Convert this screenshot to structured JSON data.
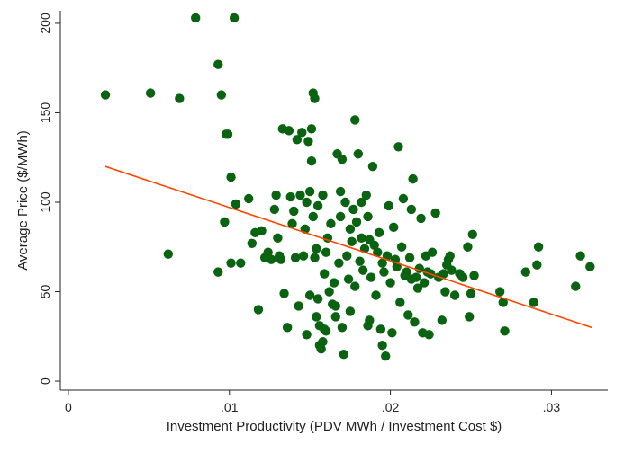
{
  "chart_data": {
    "type": "scatter",
    "title": "",
    "xlabel": "Investment Productivity (PDV MWh / Investment Cost $)",
    "ylabel": "Average Price ($/MWh)",
    "xlim": [
      -0.0005,
      0.0335
    ],
    "ylim": [
      -5,
      207
    ],
    "x_ticks": [
      0,
      0.01,
      0.02,
      0.03
    ],
    "x_tick_labels": [
      "0",
      ".01",
      ".02",
      ".03"
    ],
    "y_ticks": [
      0,
      50,
      100,
      150,
      200
    ],
    "y_tick_labels": [
      "0",
      "50",
      "100",
      "150",
      "200"
    ],
    "grid": false,
    "legend": "none",
    "colors": {
      "points": "#0a6310",
      "fit_line": "#ff4500",
      "axis": "#222222"
    },
    "fit_line": {
      "x": [
        0.0023,
        0.0325
      ],
      "y": [
        120,
        30
      ]
    },
    "series": [
      {
        "points": [
          [
            0.0023,
            160
          ],
          [
            0.0051,
            161
          ],
          [
            0.0069,
            158
          ],
          [
            0.0079,
            203
          ],
          [
            0.0093,
            177
          ],
          [
            0.0095,
            160
          ],
          [
            0.0098,
            138
          ],
          [
            0.0099,
            138
          ],
          [
            0.0101,
            114
          ],
          [
            0.0103,
            203
          ],
          [
            0.0062,
            71
          ],
          [
            0.0093,
            61
          ],
          [
            0.0097,
            89
          ],
          [
            0.0101,
            66
          ],
          [
            0.0104,
            99
          ],
          [
            0.0107,
            66
          ],
          [
            0.0112,
            102
          ],
          [
            0.0114,
            77
          ],
          [
            0.0116,
            83
          ],
          [
            0.0118,
            40
          ],
          [
            0.012,
            84
          ],
          [
            0.0122,
            69
          ],
          [
            0.0124,
            72
          ],
          [
            0.0126,
            68
          ],
          [
            0.0128,
            96
          ],
          [
            0.0129,
            104
          ],
          [
            0.013,
            80
          ],
          [
            0.0131,
            70
          ],
          [
            0.0132,
            68
          ],
          [
            0.0133,
            141
          ],
          [
            0.0134,
            49
          ],
          [
            0.0136,
            30
          ],
          [
            0.0137,
            140
          ],
          [
            0.0138,
            103
          ],
          [
            0.0139,
            88
          ],
          [
            0.014,
            95
          ],
          [
            0.0141,
            69
          ],
          [
            0.0142,
            135
          ],
          [
            0.0143,
            42
          ],
          [
            0.0144,
            104
          ],
          [
            0.0145,
            139
          ],
          [
            0.0146,
            70
          ],
          [
            0.0147,
            85
          ],
          [
            0.0148,
            100
          ],
          [
            0.0149,
            134
          ],
          [
            0.015,
            48
          ],
          [
            0.015,
            106
          ],
          [
            0.0151,
            123
          ],
          [
            0.0151,
            141
          ],
          [
            0.0152,
            92
          ],
          [
            0.0152,
            161
          ],
          [
            0.0153,
            158
          ],
          [
            0.0153,
            69
          ],
          [
            0.0154,
            74
          ],
          [
            0.0154,
            36
          ],
          [
            0.0155,
            98
          ],
          [
            0.0155,
            46
          ],
          [
            0.0156,
            31
          ],
          [
            0.0156,
            20
          ],
          [
            0.0157,
            18
          ],
          [
            0.0158,
            104
          ],
          [
            0.0158,
            22
          ],
          [
            0.0159,
            60
          ],
          [
            0.016,
            72
          ],
          [
            0.016,
            28
          ],
          [
            0.0161,
            80
          ],
          [
            0.0162,
            50
          ],
          [
            0.0163,
            88
          ],
          [
            0.0164,
            43
          ],
          [
            0.0165,
            55
          ],
          [
            0.0166,
            36
          ],
          [
            0.0167,
            127
          ],
          [
            0.0168,
            66
          ],
          [
            0.0169,
            92
          ],
          [
            0.0169,
            106
          ],
          [
            0.017,
            124
          ],
          [
            0.017,
            30
          ],
          [
            0.0171,
            15
          ],
          [
            0.0172,
            100
          ],
          [
            0.0173,
            70
          ],
          [
            0.0174,
            57
          ],
          [
            0.0175,
            85
          ],
          [
            0.0176,
            78
          ],
          [
            0.0177,
            96
          ],
          [
            0.0178,
            53
          ],
          [
            0.0178,
            146
          ],
          [
            0.0179,
            89
          ],
          [
            0.018,
            127
          ],
          [
            0.0181,
            67
          ],
          [
            0.0182,
            80
          ],
          [
            0.0183,
            62
          ],
          [
            0.0184,
            74
          ],
          [
            0.0185,
            104
          ],
          [
            0.0186,
            92
          ],
          [
            0.0187,
            34
          ],
          [
            0.0188,
            58
          ],
          [
            0.0189,
            120
          ],
          [
            0.019,
            76
          ],
          [
            0.0191,
            48
          ],
          [
            0.0192,
            72
          ],
          [
            0.0193,
            83
          ],
          [
            0.0194,
            29
          ],
          [
            0.0195,
            20
          ],
          [
            0.0196,
            61
          ],
          [
            0.0197,
            14
          ],
          [
            0.0198,
            70
          ],
          [
            0.0199,
            98
          ],
          [
            0.02,
            55
          ],
          [
            0.0201,
            27
          ],
          [
            0.0202,
            86
          ],
          [
            0.0203,
            68
          ],
          [
            0.0204,
            64
          ],
          [
            0.0205,
            131
          ],
          [
            0.0206,
            44
          ],
          [
            0.0207,
            75
          ],
          [
            0.0208,
            102
          ],
          [
            0.0209,
            59
          ],
          [
            0.021,
            61
          ],
          [
            0.0211,
            37
          ],
          [
            0.0212,
            69
          ],
          [
            0.0213,
            96
          ],
          [
            0.0214,
            113
          ],
          [
            0.0215,
            33
          ],
          [
            0.0216,
            58
          ],
          [
            0.0217,
            52
          ],
          [
            0.0218,
            63
          ],
          [
            0.0219,
            91
          ],
          [
            0.022,
            27
          ],
          [
            0.0221,
            55
          ],
          [
            0.0222,
            70
          ],
          [
            0.0223,
            61
          ],
          [
            0.0224,
            26
          ],
          [
            0.0225,
            60
          ],
          [
            0.0226,
            72
          ],
          [
            0.0228,
            94
          ],
          [
            0.023,
            58
          ],
          [
            0.0232,
            34
          ],
          [
            0.0233,
            60
          ],
          [
            0.0234,
            50
          ],
          [
            0.0235,
            65
          ],
          [
            0.0236,
            68
          ],
          [
            0.0237,
            70
          ],
          [
            0.0238,
            62
          ],
          [
            0.024,
            48
          ],
          [
            0.0243,
            60
          ],
          [
            0.0245,
            58
          ],
          [
            0.0248,
            75
          ],
          [
            0.0249,
            36
          ],
          [
            0.025,
            49
          ],
          [
            0.0251,
            82
          ],
          [
            0.0252,
            59
          ],
          [
            0.0268,
            50
          ],
          [
            0.027,
            44
          ],
          [
            0.0271,
            28
          ],
          [
            0.0284,
            61
          ],
          [
            0.0289,
            44
          ],
          [
            0.0291,
            65
          ],
          [
            0.0292,
            75
          ],
          [
            0.0315,
            53
          ],
          [
            0.0318,
            70
          ],
          [
            0.0324,
            64
          ],
          [
            0.0159,
            29
          ],
          [
            0.0148,
            26
          ],
          [
            0.0166,
            42
          ],
          [
            0.0187,
            79
          ],
          [
            0.0195,
            66
          ],
          [
            0.0213,
            57
          ],
          [
            0.0186,
            31
          ],
          [
            0.0175,
            39
          ],
          [
            0.0182,
            100
          ]
        ]
      }
    ]
  }
}
